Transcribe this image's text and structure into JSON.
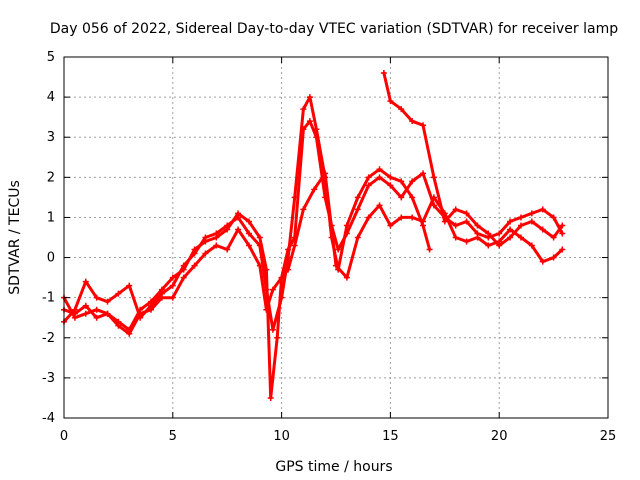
{
  "chart_data": {
    "type": "scatter",
    "title": "Day 056 of 2022, Sidereal Day-to-day VTEC variation (SDTVAR) for receiver lamp",
    "xlabel": "GPS time / hours",
    "ylabel": "SDTVAR / TECUs",
    "xlim": [
      0,
      25
    ],
    "ylim": [
      -4,
      5
    ],
    "xticks": [
      "0",
      "5",
      "10",
      "15",
      "20",
      "25"
    ],
    "yticks": [
      "-4",
      "-3",
      "-2",
      "-1",
      "0",
      "1",
      "2",
      "3",
      "4",
      "5"
    ],
    "grid": true,
    "marker": "+",
    "color": "#ff0000",
    "series": [
      {
        "x": [
          0.0,
          0.5,
          1.0,
          1.5,
          2.0,
          2.5,
          3.0,
          3.5,
          4.0,
          4.5,
          5.0,
          5.5,
          6.0,
          6.5,
          7.0,
          7.5,
          8.0,
          8.5,
          9.0,
          9.3,
          9.6,
          10.0,
          10.3,
          10.6,
          11.0,
          11.3,
          11.6,
          12.0,
          12.3,
          12.6,
          13.0,
          13.5,
          14.0,
          14.5,
          15.0,
          15.5,
          16.0,
          16.5,
          16.8
        ],
        "y": [
          -1.6,
          -1.3,
          -0.6,
          -1.0,
          -1.1,
          -0.9,
          -0.7,
          -1.5,
          -1.2,
          -0.9,
          -0.7,
          -0.2,
          0.1,
          0.5,
          0.6,
          0.8,
          1.0,
          0.6,
          0.3,
          -0.8,
          -1.8,
          -1.0,
          0.0,
          1.5,
          3.7,
          4.0,
          3.2,
          2.0,
          0.5,
          -0.3,
          0.8,
          1.5,
          2.0,
          2.2,
          2.0,
          1.9,
          1.5,
          0.8,
          0.2
        ]
      },
      {
        "x": [
          0.0,
          0.5,
          1.0,
          1.5,
          2.0,
          2.5,
          3.0,
          3.5,
          4.0,
          4.5,
          5.0,
          5.5,
          6.0,
          6.5,
          7.0,
          7.5,
          8.0,
          8.5,
          9.0,
          9.3,
          9.5,
          9.8,
          10.0,
          10.3,
          10.6,
          11.0,
          11.3,
          11.6,
          12.0,
          12.3,
          12.6,
          13.0,
          13.5,
          14.0,
          14.5,
          15.0,
          15.5,
          16.0,
          16.5,
          17.0,
          17.5,
          18.0,
          18.5,
          19.0,
          19.5,
          20.0,
          20.5,
          21.0,
          21.5,
          22.0,
          22.5,
          22.9
        ],
        "y": [
          -1.3,
          -1.4,
          -1.2,
          -1.5,
          -1.4,
          -1.6,
          -1.8,
          -1.3,
          -1.1,
          -0.8,
          -0.5,
          -0.3,
          0.2,
          0.4,
          0.5,
          0.7,
          1.1,
          0.9,
          0.5,
          -0.3,
          -3.5,
          -2.0,
          -0.5,
          0.2,
          0.5,
          3.2,
          3.4,
          3.0,
          1.5,
          0.8,
          0.2,
          0.6,
          1.2,
          1.8,
          2.0,
          1.8,
          1.5,
          1.9,
          2.1,
          1.3,
          1.0,
          0.8,
          0.9,
          0.6,
          0.5,
          0.6,
          0.9,
          1.0,
          1.1,
          1.2,
          1.0,
          0.6
        ]
      },
      {
        "x": [
          0.0,
          0.5,
          1.0,
          1.5,
          2.0,
          2.5,
          3.0,
          3.5,
          4.0,
          4.5,
          5.0,
          5.5,
          6.0,
          6.5,
          7.0,
          7.5,
          8.0,
          8.5,
          9.0,
          9.3,
          9.6,
          10.0,
          10.3,
          10.6,
          11.0,
          11.5,
          12.0,
          12.5,
          13.0,
          13.5,
          14.0,
          14.5,
          15.0,
          15.5,
          16.0,
          16.5,
          17.0,
          17.5,
          18.0,
          18.5,
          19.0,
          19.5,
          20.0,
          20.5,
          21.0,
          21.5,
          22.0,
          22.5,
          22.9
        ],
        "y": [
          -1.0,
          -1.5,
          -1.4,
          -1.3,
          -1.4,
          -1.7,
          -1.9,
          -1.4,
          -1.3,
          -1.0,
          -1.0,
          -0.5,
          -0.2,
          0.1,
          0.3,
          0.2,
          0.7,
          0.3,
          -0.2,
          -1.3,
          -0.8,
          -0.5,
          -0.3,
          0.3,
          1.2,
          1.7,
          2.1,
          -0.2,
          -0.5,
          0.5,
          1.0,
          1.3,
          0.8,
          1.0,
          1.0,
          0.9,
          1.5,
          1.1,
          0.5,
          0.4,
          0.5,
          0.3,
          0.4,
          0.7,
          0.5,
          0.3,
          -0.1,
          0.0,
          0.2
        ]
      },
      {
        "x": [
          14.7,
          15.0,
          15.5,
          16.0,
          16.5,
          17.0,
          17.5,
          18.0,
          18.5,
          19.0,
          19.5,
          20.0,
          20.5,
          21.0,
          21.5,
          22.0,
          22.5,
          22.9
        ],
        "y": [
          4.6,
          3.9,
          3.7,
          3.4,
          3.3,
          2.0,
          0.9,
          1.2,
          1.1,
          0.8,
          0.6,
          0.3,
          0.5,
          0.8,
          0.9,
          0.7,
          0.5,
          0.8
        ]
      }
    ]
  }
}
